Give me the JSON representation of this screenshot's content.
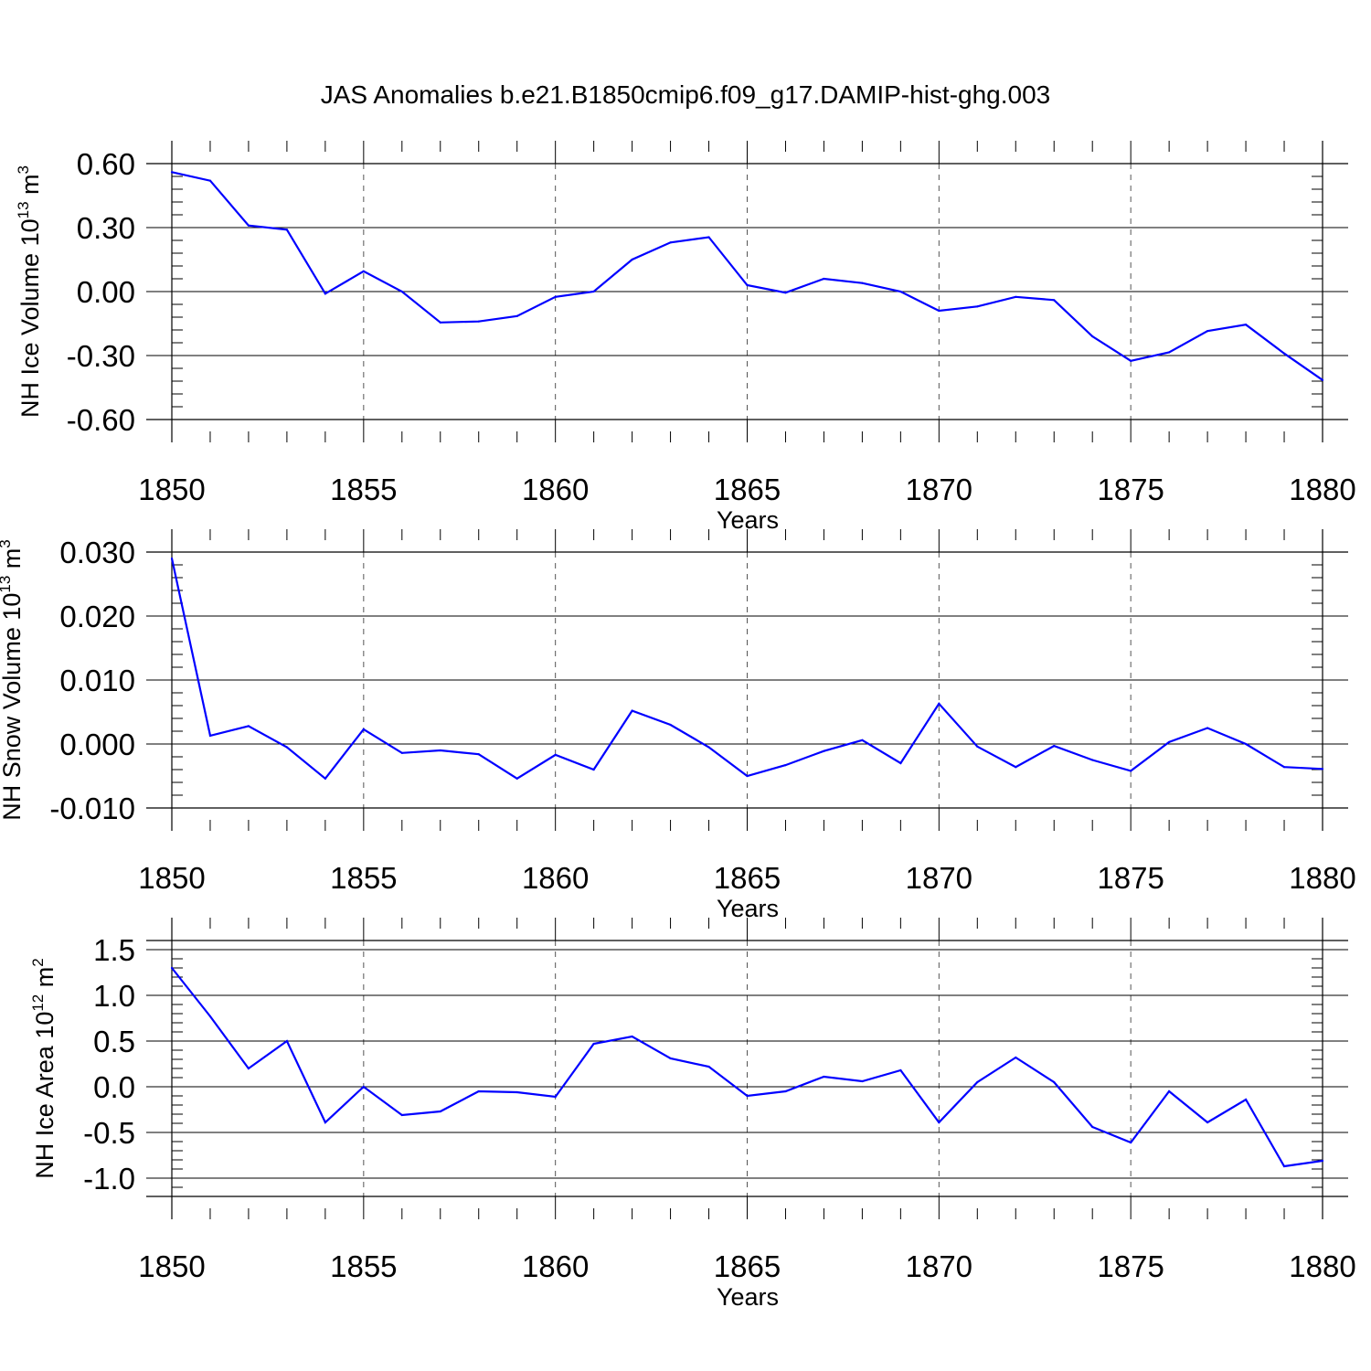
{
  "figure": {
    "title": "JAS Anomalies b.e21.B1850cmip6.f09_g17.DAMIP-hist-ghg.003"
  },
  "colors": {
    "line": "#0000ff",
    "axis": "#000000",
    "grid": "#555555"
  },
  "chart_data": [
    {
      "type": "line",
      "name": "ice-volume",
      "ylabel_main": "NH Ice Volume 10",
      "ylabel_exp": "13",
      "ylabel_unit": " m",
      "ylabel_unit_exp": "3",
      "xlabel": "Years",
      "xlim": [
        1850,
        1880
      ],
      "ylim": [
        -0.6,
        0.6
      ],
      "xticks": [
        1850,
        1855,
        1860,
        1865,
        1870,
        1875,
        1880
      ],
      "yticks": [
        -0.6,
        -0.3,
        0.0,
        0.3,
        0.6
      ],
      "ytick_labels": [
        "-0.60",
        "-0.30",
        "0.00",
        "0.30",
        "0.60"
      ],
      "grid": "vertical dashed",
      "x": [
        1850,
        1851,
        1852,
        1853,
        1854,
        1855,
        1856,
        1857,
        1858,
        1859,
        1860,
        1861,
        1862,
        1863,
        1864,
        1865,
        1866,
        1867,
        1868,
        1869,
        1870,
        1871,
        1872,
        1873,
        1874,
        1875,
        1876,
        1877,
        1878,
        1879,
        1880
      ],
      "values": [
        0.56,
        0.52,
        0.31,
        0.29,
        -0.01,
        0.095,
        0.0,
        -0.145,
        -0.14,
        -0.115,
        -0.025,
        0.0,
        0.15,
        0.23,
        0.255,
        0.03,
        -0.005,
        0.06,
        0.04,
        0.0,
        -0.09,
        -0.07,
        -0.025,
        -0.04,
        -0.21,
        -0.325,
        -0.285,
        -0.185,
        -0.155,
        -0.29,
        -0.415
      ]
    },
    {
      "type": "line",
      "name": "snow-volume",
      "ylabel_main": "NH Snow Volume 10",
      "ylabel_exp": "13",
      "ylabel_unit": " m",
      "ylabel_unit_exp": "3",
      "xlabel": "Years",
      "xlim": [
        1850,
        1880
      ],
      "ylim": [
        -0.01,
        0.03
      ],
      "xticks": [
        1850,
        1855,
        1860,
        1865,
        1870,
        1875,
        1880
      ],
      "yticks": [
        -0.01,
        0.0,
        0.01,
        0.02,
        0.03
      ],
      "ytick_labels": [
        "-0.010",
        "0.000",
        "0.010",
        "0.020",
        "0.030"
      ],
      "grid": "vertical dashed",
      "x": [
        1850,
        1851,
        1852,
        1853,
        1854,
        1855,
        1856,
        1857,
        1858,
        1859,
        1860,
        1861,
        1862,
        1863,
        1864,
        1865,
        1866,
        1867,
        1868,
        1869,
        1870,
        1871,
        1872,
        1873,
        1874,
        1875,
        1876,
        1877,
        1878,
        1879,
        1880
      ],
      "values": [
        0.029,
        0.0013,
        0.0028,
        -0.0005,
        -0.0054,
        0.0023,
        -0.0014,
        -0.001,
        -0.0016,
        -0.0054,
        -0.0017,
        -0.004,
        0.0052,
        0.003,
        -0.0005,
        -0.005,
        -0.0033,
        -0.0011,
        0.0006,
        -0.003,
        0.0063,
        -0.0004,
        -0.0036,
        -0.0003,
        -0.0025,
        -0.0042,
        0.0003,
        0.0025,
        0.0,
        -0.0036,
        -0.0039
      ]
    },
    {
      "type": "line",
      "name": "ice-area",
      "ylabel_main": "NH Ice Area 10",
      "ylabel_exp": "12",
      "ylabel_unit": " m",
      "ylabel_unit_exp": "2",
      "xlabel": "Years",
      "xlim": [
        1850,
        1880
      ],
      "ylim": [
        -1.2,
        1.6
      ],
      "xticks": [
        1850,
        1855,
        1860,
        1865,
        1870,
        1875,
        1880
      ],
      "yticks": [
        -1.0,
        -0.5,
        0.0,
        0.5,
        1.0,
        1.5
      ],
      "ytick_labels": [
        "-1.0",
        "-0.5",
        "0.0",
        "0.5",
        "1.0",
        "1.5"
      ],
      "grid": "vertical dashed",
      "x": [
        1850,
        1851,
        1852,
        1853,
        1854,
        1855,
        1856,
        1857,
        1858,
        1859,
        1860,
        1861,
        1862,
        1863,
        1864,
        1865,
        1866,
        1867,
        1868,
        1869,
        1870,
        1871,
        1872,
        1873,
        1874,
        1875,
        1876,
        1877,
        1878,
        1879,
        1880
      ],
      "values": [
        1.3,
        0.77,
        0.2,
        0.5,
        -0.39,
        0.0,
        -0.31,
        -0.27,
        -0.05,
        -0.06,
        -0.11,
        0.47,
        0.55,
        0.31,
        0.22,
        -0.1,
        -0.05,
        0.11,
        0.06,
        0.18,
        -0.39,
        0.05,
        0.32,
        0.05,
        -0.44,
        -0.61,
        -0.05,
        -0.39,
        -0.14,
        -0.87,
        -0.81
      ]
    }
  ]
}
